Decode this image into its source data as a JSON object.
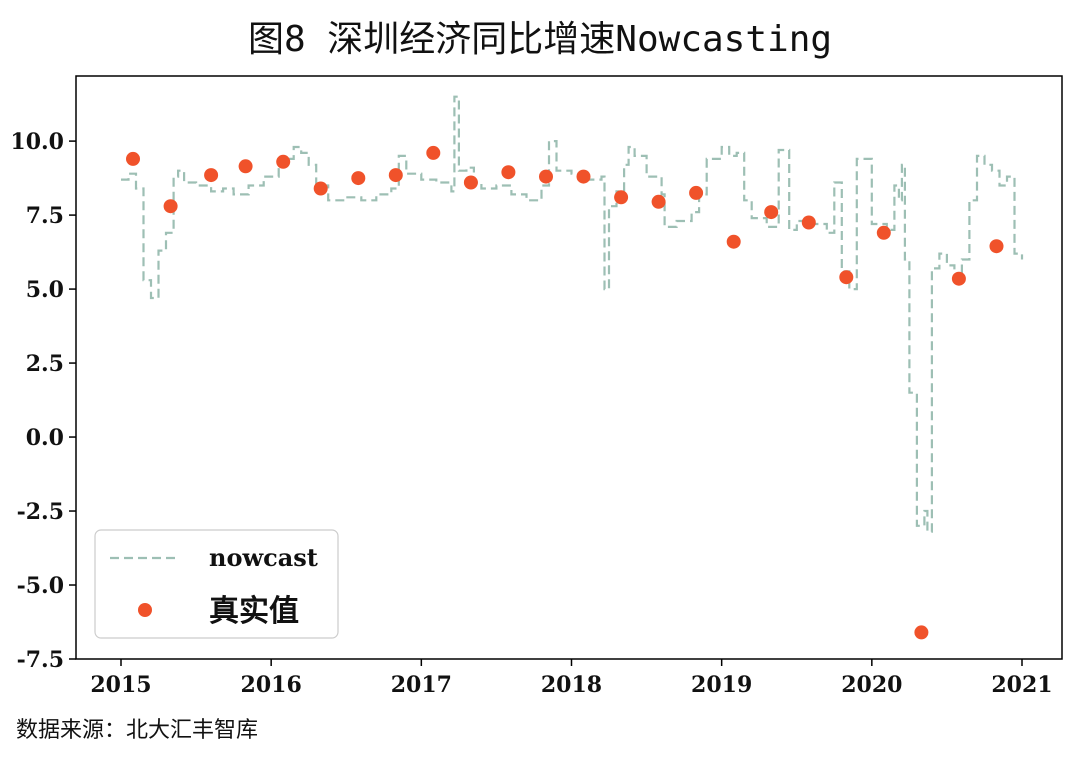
{
  "title": "图8 深圳经济同比增速Nowcasting",
  "source": "数据来源：北大汇丰智库",
  "colors": {
    "nowcast": "#9dbfb4",
    "actual": "#f0522a",
    "axis": "#000000"
  },
  "chart_data": {
    "type": "line",
    "title": "图8 深圳经济同比增速Nowcasting",
    "xlabel": "",
    "ylabel": "",
    "xlim": [
      2015.0,
      2021.0
    ],
    "ylim": [
      -7.5,
      12.2
    ],
    "x_ticks": [
      2015,
      2016,
      2017,
      2018,
      2019,
      2020,
      2021
    ],
    "x_tick_labels": [
      "2015",
      "2016",
      "2017",
      "2018",
      "2019",
      "2020",
      "2021"
    ],
    "y_ticks": [
      -7.5,
      -5.0,
      -2.5,
      0.0,
      2.5,
      5.0,
      7.5,
      10.0
    ],
    "y_tick_labels": [
      "-7.5",
      "-5.0",
      "-2.5",
      "0.0",
      "2.5",
      "5.0",
      "7.5",
      "10.0"
    ],
    "grid": false,
    "legend_position": "lower-left",
    "legend": [
      "nowcast",
      "真实值"
    ],
    "series": [
      {
        "name": "nowcast",
        "style": "dashed-step",
        "x": [
          2015.0,
          2015.05,
          2015.1,
          2015.15,
          2015.2,
          2015.25,
          2015.3,
          2015.35,
          2015.38,
          2015.42,
          2015.5,
          2015.6,
          2015.68,
          2015.75,
          2015.85,
          2015.95,
          2016.05,
          2016.15,
          2016.2,
          2016.25,
          2016.3,
          2016.38,
          2016.5,
          2016.6,
          2016.7,
          2016.8,
          2016.85,
          2016.9,
          2017.0,
          2017.1,
          2017.2,
          2017.22,
          2017.25,
          2017.3,
          2017.35,
          2017.4,
          2017.5,
          2017.6,
          2017.7,
          2017.8,
          2017.85,
          2017.9,
          2018.0,
          2018.1,
          2018.2,
          2018.22,
          2018.25,
          2018.3,
          2018.35,
          2018.38,
          2018.42,
          2018.5,
          2018.6,
          2018.62,
          2018.7,
          2018.8,
          2018.85,
          2018.9,
          2019.0,
          2019.05,
          2019.1,
          2019.15,
          2019.2,
          2019.3,
          2019.38,
          2019.45,
          2019.5,
          2019.6,
          2019.7,
          2019.75,
          2019.8,
          2019.85,
          2019.9,
          2020.0,
          2020.1,
          2020.15,
          2020.18,
          2020.2,
          2020.22,
          2020.25,
          2020.3,
          2020.35,
          2020.37,
          2020.4,
          2020.45,
          2020.5,
          2020.55,
          2020.6,
          2020.65,
          2020.7,
          2020.75,
          2020.8,
          2020.85,
          2020.9,
          2020.95,
          2021.0
        ],
        "y": [
          8.7,
          8.9,
          8.4,
          5.3,
          4.7,
          6.3,
          6.9,
          8.8,
          9.0,
          8.6,
          8.5,
          8.3,
          8.4,
          8.2,
          8.5,
          8.8,
          9.4,
          9.8,
          9.6,
          9.2,
          8.5,
          8.0,
          8.1,
          8.0,
          8.2,
          8.4,
          9.5,
          8.9,
          8.7,
          8.6,
          8.3,
          11.5,
          9.0,
          9.1,
          8.6,
          8.4,
          8.5,
          8.2,
          8.0,
          8.5,
          10.0,
          9.0,
          8.9,
          8.7,
          8.8,
          5.0,
          7.8,
          8.3,
          9.2,
          9.8,
          9.5,
          8.8,
          8.2,
          7.1,
          7.3,
          7.6,
          8.2,
          9.4,
          9.8,
          9.5,
          9.6,
          8.0,
          7.4,
          7.1,
          9.7,
          7.0,
          7.3,
          7.2,
          6.9,
          8.6,
          5.6,
          5.0,
          9.4,
          7.2,
          7.0,
          8.5,
          8.0,
          9.2,
          6.0,
          1.5,
          -3.0,
          -2.5,
          -3.2,
          5.7,
          6.2,
          5.8,
          5.4,
          6.0,
          8.0,
          9.5,
          9.2,
          9.0,
          8.5,
          8.8,
          6.2,
          6.0
        ]
      },
      {
        "name": "真实值",
        "style": "scatter",
        "x": [
          2015.08,
          2015.33,
          2015.6,
          2015.83,
          2016.08,
          2016.33,
          2016.58,
          2016.83,
          2017.08,
          2017.33,
          2017.58,
          2017.83,
          2018.08,
          2018.33,
          2018.58,
          2018.83,
          2019.08,
          2019.33,
          2019.58,
          2019.83,
          2020.08,
          2020.33,
          2020.58,
          2020.83
        ],
        "y": [
          9.4,
          7.8,
          8.85,
          9.15,
          9.3,
          8.4,
          8.75,
          8.85,
          9.6,
          8.6,
          8.95,
          8.8,
          8.8,
          8.1,
          7.95,
          8.25,
          6.6,
          7.6,
          7.25,
          5.4,
          6.9,
          -6.6,
          5.35,
          6.45
        ]
      }
    ]
  }
}
